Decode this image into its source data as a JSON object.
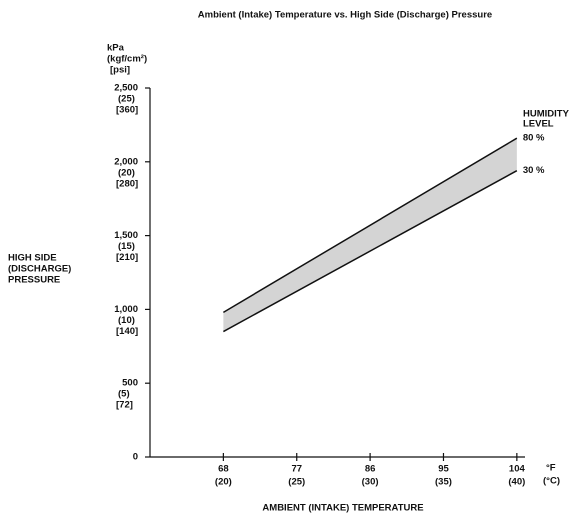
{
  "chart_data": {
    "type": "line",
    "title": "Ambient (Intake) Temperature vs. High Side (Discharge) Pressure",
    "y_label": [
      "kPa",
      "(kgf/cm²)",
      "[psi]"
    ],
    "y_title": [
      "HIGH SIDE",
      "(DISCHARGE)",
      "PRESSURE"
    ],
    "x_label": "AMBIENT (INTAKE) TEMPERATURE",
    "x_units": [
      "°F",
      "(°C)"
    ],
    "legend_title": [
      "HUMIDITY",
      "LEVEL"
    ],
    "x": [
      68,
      104
    ],
    "series": [
      {
        "name": "80 %",
        "color": "#111111",
        "values": [
          980,
          2160
        ]
      },
      {
        "name": "30 %",
        "color": "#111111",
        "values": [
          850,
          1940
        ]
      }
    ],
    "band_color": "#d4d4d4",
    "xlim": [
      59,
      105
    ],
    "xticks": [
      68,
      77,
      86,
      95,
      104
    ],
    "xticks_celsius": [
      "(20)",
      "(25)",
      "(30)",
      "(35)",
      "(40)"
    ],
    "ylim": [
      0,
      2500
    ],
    "yticks": [
      {
        "value": 0,
        "label": "0"
      },
      {
        "value": 500,
        "label": "500"
      },
      {
        "value": 1000,
        "label": "1,000"
      },
      {
        "value": 1500,
        "label": "1,500"
      },
      {
        "value": 2000,
        "label": "2,000"
      },
      {
        "value": 2500,
        "label": "2,500"
      }
    ],
    "yticks_kgf": [
      null,
      "(5)",
      "(10)",
      "(15)",
      "(20)",
      "(25)"
    ],
    "yticks_psi": [
      null,
      "[72]",
      "[140]",
      "[210]",
      "[280]",
      "[360]"
    ]
  }
}
